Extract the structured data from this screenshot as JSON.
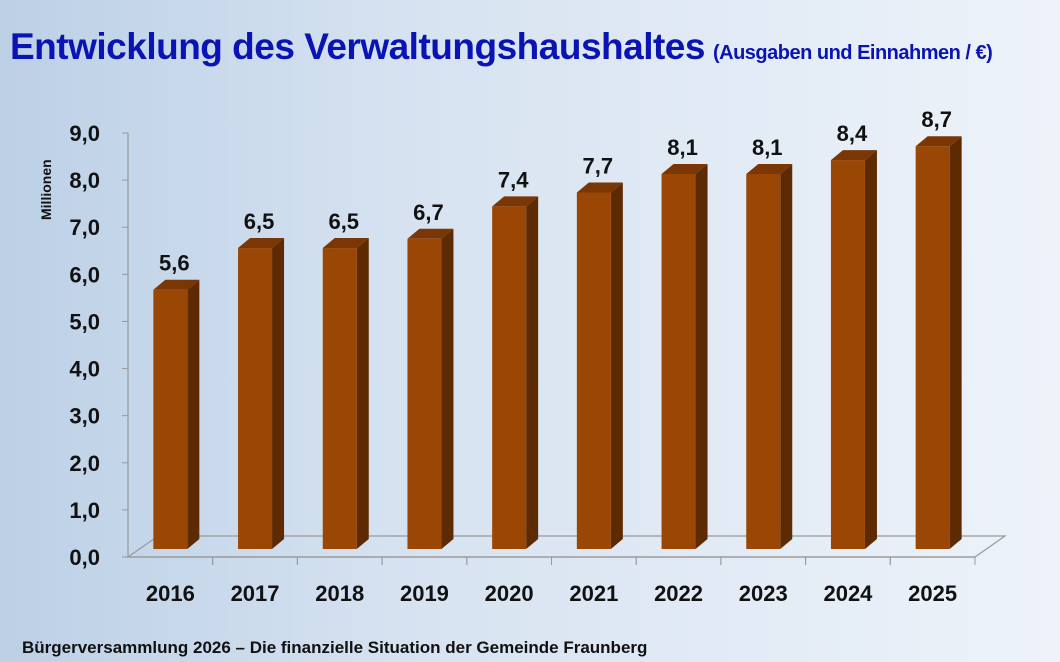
{
  "title": "Entwicklung des Verwaltungshaushaltes",
  "subtitle": "(Ausgaben und Einnahmen / €)",
  "footer": "Bürgerversammlung 2026 – Die finanzielle Situation der Gemeinde Fraunberg",
  "chart_data": {
    "type": "bar",
    "title": "Entwicklung des Verwaltungshaushaltes",
    "ylabel": "Millionen",
    "xlabel": "",
    "categories": [
      "2016",
      "2017",
      "2018",
      "2019",
      "2020",
      "2021",
      "2022",
      "2023",
      "2024",
      "2025"
    ],
    "values": [
      5.6,
      6.5,
      6.5,
      6.7,
      7.4,
      7.7,
      8.1,
      8.1,
      8.4,
      8.7
    ],
    "labels": [
      "5,6",
      "6,5",
      "6,5",
      "6,7",
      "7,4",
      "7,7",
      "8,1",
      "8,1",
      "8,4",
      "8,7"
    ],
    "yticks": [
      "0,0",
      "1,0",
      "2,0",
      "3,0",
      "4,0",
      "5,0",
      "6,0",
      "7,0",
      "8,0",
      "9,0"
    ],
    "ylim": [
      0,
      9
    ],
    "grid": false,
    "colors": {
      "front": "#9a4706",
      "side": "#5e2a02",
      "top": "#7a3604"
    }
  }
}
